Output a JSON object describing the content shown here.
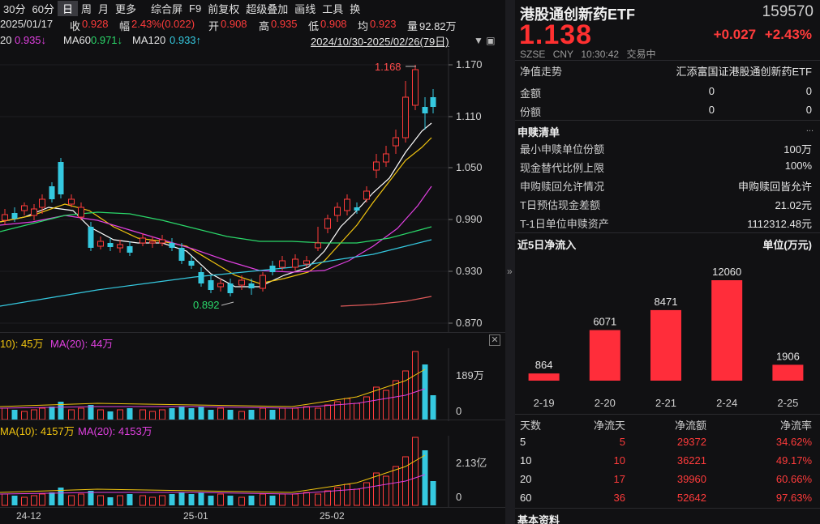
{
  "toolbar": {
    "items": [
      "30分",
      "60分",
      "日",
      "周",
      "月",
      "更多",
      "综合屏",
      "F9",
      "前复权",
      "超级叠加",
      "画线",
      "工具",
      "换"
    ],
    "selected": "日"
  },
  "info": {
    "date": "2025/01/17",
    "close_label": "收",
    "close": "0.928",
    "amp_label": "幅",
    "amp": "2.43%(0.022)",
    "open_label": "开",
    "open": "0.908",
    "high_label": "高",
    "high": "0.935",
    "low_label": "低",
    "low": "0.908",
    "avg_label": "均",
    "avg": "0.923",
    "vol_label": "量",
    "vol": "92.82万"
  },
  "ma": {
    "ma20_label": "20",
    "ma20": "0.935↓",
    "ma60_label": "MA60",
    "ma60": "0.971↓",
    "ma120_label": "MA120",
    "ma120": "0.933↑"
  },
  "range": "2024/10/30-2025/02/26(79日)",
  "range_icons": "▼ ▣",
  "price_axis": [
    "1.170",
    "1.110",
    "1.050",
    "0.990",
    "0.930",
    "0.870"
  ],
  "annotations": {
    "high": "1.168",
    "low": "0.892"
  },
  "vol_panel": {
    "ma10": "10): 45万",
    "ma20": "MA(20): 44万",
    "ticks": [
      "189万",
      "0"
    ]
  },
  "amt_panel": {
    "ma10": "MA(10): 4157万",
    "ma20": "MA(20): 4153万",
    "ticks": [
      "2.13亿",
      "0"
    ]
  },
  "date_axis": [
    "24-12",
    "25-01",
    "25-02"
  ],
  "close_icon": "✕",
  "collapse_icon": "»",
  "fund": {
    "name": "港股通创新药ETF",
    "code": "159570",
    "price": "1.138",
    "change": "+0.027",
    "change_pct": "+2.43%",
    "market": "SZSE",
    "currency": "CNY",
    "time": "10:30:42",
    "status": "交易中"
  },
  "nav_row": {
    "label": "净值走势",
    "value": "汇添富国证港股通创新药ETF"
  },
  "amount_rows": [
    {
      "label": "金额",
      "v1": "0",
      "v2": "0"
    },
    {
      "label": "份额",
      "v1": "0",
      "v2": "0"
    }
  ],
  "subscribe": {
    "title": "申赎清单",
    "icons": "融 ✎ ◩ ...",
    "more": "...",
    "rows": [
      {
        "label": "最小申赎单位份额",
        "value": "100万"
      },
      {
        "label": "现金替代比例上限",
        "value": "100%"
      },
      {
        "label": "申购赎回允许情况",
        "value": "申购赎回皆允许"
      },
      {
        "label": "T日预估现金差额",
        "value": "21.02元"
      },
      {
        "label": "T-1日单位申赎资产",
        "value": "1112312.48元"
      }
    ]
  },
  "inflow": {
    "title": "近5日净流入",
    "unit": "单位(万元)"
  },
  "chart_data": {
    "type": "bar",
    "title": "近5日净流入",
    "ylabel": "单位(万元)",
    "categories": [
      "2-19",
      "2-20",
      "2-21",
      "2-24",
      "2-25"
    ],
    "values": [
      864,
      6071,
      8471,
      12060,
      1906
    ],
    "ylim": [
      0,
      12060
    ],
    "color": "#ff2d3a"
  },
  "flow_table": {
    "headers": [
      "天数",
      "净流天",
      "净流额",
      "净流率"
    ],
    "rows": [
      [
        "5",
        "5",
        "29372",
        "34.62%"
      ],
      [
        "10",
        "10",
        "36221",
        "49.17%"
      ],
      [
        "20",
        "17",
        "39960",
        "60.66%"
      ],
      [
        "60",
        "36",
        "52642",
        "97.63%"
      ]
    ]
  },
  "basic_info": {
    "title": "基本资料"
  }
}
